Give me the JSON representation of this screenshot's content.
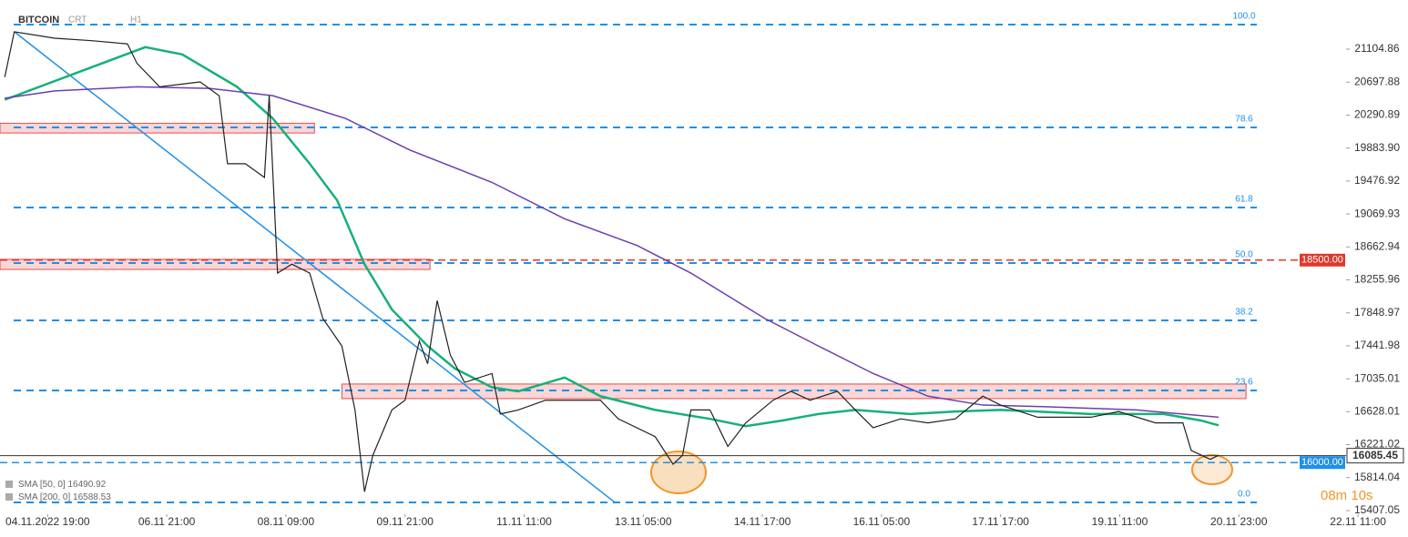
{
  "chart_data": {
    "type": "line",
    "symbol": "BITCOIN",
    "chart_type": "CRT",
    "timeframe": "H1",
    "xlim": [
      -0.4,
      10.9
    ],
    "ylim": [
      15362,
      21712
    ],
    "xticks": [
      {
        "value": 0,
        "label": "04.11.2022 19:00"
      },
      {
        "value": 1,
        "label": "06.11 21:00"
      },
      {
        "value": 2,
        "label": "08.11 09:00"
      },
      {
        "value": 3,
        "label": "09.11 21:00"
      },
      {
        "value": 4,
        "label": "11.11 11:00"
      },
      {
        "value": 5,
        "label": "13.11 05:00"
      },
      {
        "value": 6,
        "label": "14.11 17:00"
      },
      {
        "value": 7,
        "label": "16.11 05:00"
      },
      {
        "value": 8,
        "label": "17.11 17:00"
      },
      {
        "value": 9,
        "label": "19.11 11:00"
      },
      {
        "value": 10,
        "label": "20.11 23:00"
      },
      {
        "value": 11,
        "label": "22.11 11:00"
      }
    ],
    "yticks": [
      21104.86,
      20697.88,
      20290.89,
      {
        "value": 19883.9,
        "label": "19883.90"
      },
      19476.92,
      19069.93,
      18662.94,
      18255.96,
      17848.97,
      17441.98,
      17035.01,
      16628.01,
      16221.02,
      15814.04,
      15407.05
    ],
    "grid": false,
    "price": {
      "color": "#222222",
      "x": [
        -0.36,
        -0.28,
        0.06,
        0.37,
        0.67,
        0.75,
        0.94,
        1.28,
        1.44,
        1.51,
        1.66,
        1.82,
        1.86,
        1.93,
        2.05,
        2.2,
        2.31,
        2.47,
        2.58,
        2.66,
        2.73,
        2.89,
        3.0,
        3.12,
        3.19,
        3.27,
        3.38,
        3.5,
        3.73,
        3.8,
        3.95,
        4.18,
        4.49,
        4.64,
        4.79,
        5.1,
        5.25,
        5.33,
        5.4,
        5.56,
        5.71,
        5.86,
        6.09,
        6.24,
        6.4,
        6.63,
        6.78,
        6.93,
        7.16,
        7.39,
        7.62,
        7.85,
        8.0,
        8.31,
        8.76,
        8.99,
        9.3,
        9.53,
        9.6,
        9.76,
        9.83
      ],
      "values": [
        20760,
        21320,
        21240,
        21210,
        21170,
        20930,
        20640,
        20700,
        20530,
        19690,
        19690,
        19520,
        20530,
        18340,
        18450,
        18340,
        17780,
        17440,
        16650,
        15640,
        16090,
        16650,
        16770,
        17500,
        17220,
        18000,
        17330,
        16990,
        17100,
        16600,
        16650,
        16770,
        16770,
        16770,
        16540,
        16320,
        15980,
        16090,
        16650,
        16650,
        16200,
        16490,
        16770,
        16880,
        16770,
        16880,
        16650,
        16430,
        16540,
        16490,
        16540,
        16820,
        16710,
        16560,
        16560,
        16630,
        16490,
        16490,
        16150,
        16040,
        16090
      ]
    },
    "series": [
      {
        "name": "SMA [50, 0]",
        "last_value": 16490.92,
        "color": "#17b07a",
        "x": [
          -0.36,
          0.82,
          1.13,
          1.59,
          1.89,
          2.2,
          2.43,
          2.66,
          2.89,
          3.19,
          3.42,
          3.73,
          3.95,
          4.34,
          4.64,
          5.1,
          5.56,
          5.86,
          6.17,
          6.47,
          6.78,
          7.24,
          7.62,
          8.0,
          8.76,
          9.37,
          9.68,
          9.83
        ],
        "values": [
          20480,
          21130,
          21040,
          20640,
          20250,
          19690,
          19240,
          18450,
          17890,
          17440,
          17160,
          16930,
          16880,
          17050,
          16820,
          16650,
          16540,
          16450,
          16520,
          16600,
          16650,
          16600,
          16630,
          16650,
          16600,
          16600,
          16520,
          16460
        ]
      },
      {
        "name": "SMA [200, 0]",
        "last_value": 16588.53,
        "color": "#6a3fb0",
        "x": [
          -0.36,
          0.06,
          0.75,
          1.36,
          1.89,
          2.5,
          3.04,
          3.73,
          4.34,
          4.95,
          5.4,
          6.02,
          6.47,
          6.93,
          7.39,
          7.85,
          8.38,
          9.14,
          9.83
        ],
        "values": [
          20500,
          20590,
          20640,
          20620,
          20530,
          20250,
          19860,
          19460,
          19010,
          18680,
          18340,
          17780,
          17440,
          17100,
          16820,
          16710,
          16690,
          16650,
          16560
        ]
      }
    ],
    "fib_levels": [
      {
        "label": "100.0",
        "value": 21408
      },
      {
        "label": "78.6",
        "value": 20138
      },
      {
        "label": "61.8",
        "value": 19149
      },
      {
        "label": "50.0",
        "value": 18464
      },
      {
        "label": "38.2",
        "value": 17756
      },
      {
        "label": "23.6",
        "value": 16890
      },
      {
        "label": "0.0",
        "value": 15508
      }
    ],
    "zones": [
      {
        "x": [
          -0.4,
          2.24
        ],
        "y": [
          20070,
          20190
        ]
      },
      {
        "x": [
          -0.4,
          3.21
        ],
        "y": [
          18385,
          18510
        ]
      },
      {
        "x": [
          2.47,
          10.06
        ],
        "y": [
          16790,
          16970
        ]
      }
    ],
    "trendline": {
      "x": [
        -0.28,
        4.76
      ],
      "y": [
        21320,
        15510
      ],
      "color": "#1e90e8"
    },
    "levels": [
      {
        "value": 18500,
        "label": "18500.00",
        "color": "#e0392b"
      },
      {
        "value": 16000,
        "label": "16000.00",
        "color": "#1e90e8"
      }
    ],
    "current_price": {
      "value": 16085.45,
      "label": "16085.45"
    },
    "countdown": "08m 10s"
  }
}
